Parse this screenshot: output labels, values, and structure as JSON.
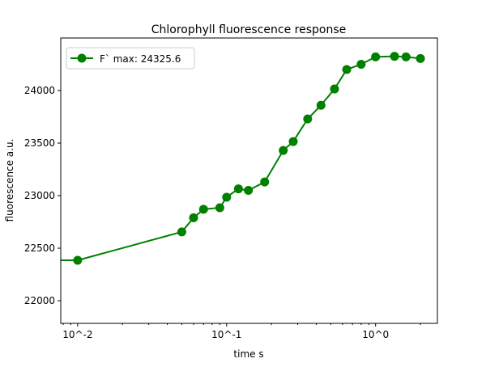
{
  "chart_data": {
    "type": "line",
    "title": "Chlorophyll fluorescence response",
    "xlabel": "time s",
    "ylabel": "fluorescence a.u.",
    "xscale": "log",
    "xlim": [
      0.0077,
      2.6
    ],
    "ylim": [
      21785,
      24500
    ],
    "xticks": [
      {
        "value": 0.01,
        "label": "10^-2"
      },
      {
        "value": 0.1,
        "label": "10^-1"
      },
      {
        "value": 1,
        "label": "10^0"
      }
    ],
    "yticks": [
      22000,
      22500,
      23000,
      23500,
      24000
    ],
    "grid": false,
    "legend": {
      "placement": "top-left",
      "entries": [
        "F` max: 24325.6"
      ]
    },
    "series": [
      {
        "name": "F` max: 24325.6",
        "color": "#008000",
        "x": [
          0.001,
          0.01,
          0.05,
          0.06,
          0.07,
          0.09,
          0.1,
          0.12,
          0.14,
          0.18,
          0.24,
          0.28,
          0.35,
          0.43,
          0.53,
          0.64,
          0.8,
          1.0,
          1.34,
          1.6,
          2.0
        ],
        "y": [
          22385,
          22385,
          22655,
          22790,
          22870,
          22885,
          22985,
          23065,
          23050,
          23130,
          23430,
          23515,
          23730,
          23860,
          24015,
          24200,
          24250,
          24320,
          24325.6,
          24320,
          24305
        ]
      }
    ]
  }
}
